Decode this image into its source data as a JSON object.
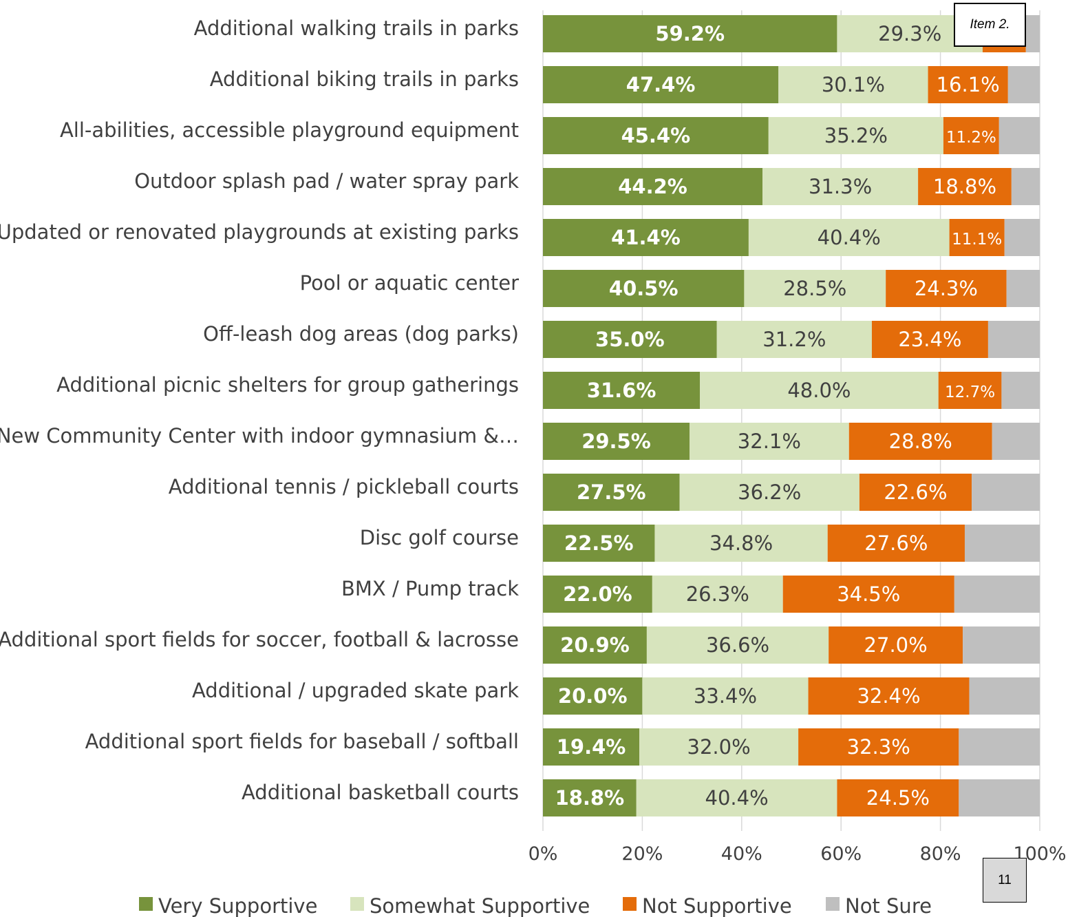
{
  "chart_data": {
    "type": "stacked-bar-horizontal",
    "categories": [
      "Additional walking trails in parks",
      "Additional biking trails in parks",
      "All-abilities, accessible playground equipment",
      "Outdoor splash pad / water spray park",
      "Updated or renovated playgrounds at existing parks",
      "Pool or aquatic center",
      "Off-leash dog areas (dog parks)",
      "Additional picnic shelters for group gatherings",
      "New Community Center with indoor gymnasium &…",
      "Additional tennis / pickleball courts",
      "Disc golf course",
      "BMX / Pump track",
      "Additional sport fields for soccer, football & lacrosse",
      "Additional / upgraded skate park",
      "Additional sport fields for baseball / softball",
      "Additional basketball courts"
    ],
    "series": [
      {
        "name": "Very Supportive",
        "color": "#77933c",
        "label_color": "#ffffff",
        "values": [
          59.2,
          47.4,
          45.4,
          44.2,
          41.4,
          40.5,
          35.0,
          31.6,
          29.5,
          27.5,
          22.5,
          22.0,
          20.9,
          20.0,
          19.4,
          18.8
        ],
        "labels": [
          "59.2%",
          "47.4%",
          "45.4%",
          "44.2%",
          "41.4%",
          "40.5%",
          "35.0%",
          "31.6%",
          "29.5%",
          "27.5%",
          "22.5%",
          "22.0%",
          "20.9%",
          "20.0%",
          "19.4%",
          "18.8%"
        ]
      },
      {
        "name": "Somewhat Supportive",
        "color": "#d7e4bd",
        "label_color": "#404040",
        "values": [
          29.3,
          30.1,
          35.2,
          31.3,
          40.4,
          28.5,
          31.2,
          48.0,
          32.1,
          36.2,
          34.8,
          26.3,
          36.6,
          33.4,
          32.0,
          40.4
        ],
        "labels": [
          "29.3%",
          "30.1%",
          "35.2%",
          "31.3%",
          "40.4%",
          "28.5%",
          "31.2%",
          "48.0%",
          "32.1%",
          "36.2%",
          "34.8%",
          "26.3%",
          "36.6%",
          "33.4%",
          "32.0%",
          "40.4%"
        ]
      },
      {
        "name": "Not Supportive",
        "color": "#e46c0a",
        "label_color": "#ffffff",
        "values": [
          8.7,
          16.1,
          11.2,
          18.8,
          11.1,
          24.3,
          23.4,
          12.7,
          28.8,
          22.6,
          27.6,
          34.5,
          27.0,
          32.4,
          32.3,
          24.5
        ],
        "labels": [
          "",
          "16.1%",
          "11.2%",
          "18.8%",
          "11.1%",
          "24.3%",
          "23.4%",
          "12.7%",
          "28.8%",
          "22.6%",
          "27.6%",
          "34.5%",
          "27.0%",
          "32.4%",
          "32.3%",
          "24.5%"
        ]
      },
      {
        "name": "Not Sure",
        "color": "#bfbfbf",
        "label_color": "#404040",
        "values": [
          2.8,
          6.4,
          8.2,
          5.7,
          7.1,
          6.7,
          10.4,
          7.7,
          9.6,
          13.7,
          15.1,
          17.2,
          15.5,
          14.2,
          16.3,
          16.3
        ],
        "labels": [
          "",
          "",
          "",
          "",
          "",
          "",
          "",
          "",
          "",
          "",
          "",
          "",
          "",
          "",
          "",
          ""
        ]
      }
    ],
    "x_ticks": [
      "0%",
      "20%",
      "40%",
      "60%",
      "80%",
      "100%"
    ],
    "xlim": [
      0,
      100
    ],
    "grid": true,
    "legend_position": "bottom"
  },
  "annotations": {
    "item_label": "Item 2.",
    "page_number": "11"
  }
}
